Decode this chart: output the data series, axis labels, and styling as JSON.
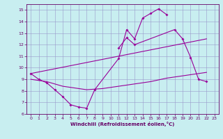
{
  "xlabel": "Windchill (Refroidissement éolien,°C)",
  "background_color": "#c8eef0",
  "grid_color": "#9999cc",
  "line_color": "#990099",
  "xlim": [
    -0.5,
    23.5
  ],
  "ylim": [
    6,
    15.5
  ],
  "xticks": [
    0,
    1,
    2,
    3,
    4,
    5,
    6,
    7,
    8,
    9,
    10,
    11,
    12,
    13,
    14,
    15,
    16,
    17,
    18,
    19,
    20,
    21,
    22,
    23
  ],
  "yticks": [
    6,
    7,
    8,
    9,
    10,
    11,
    12,
    13,
    14,
    15
  ],
  "series1_x": [
    0,
    1,
    2,
    3,
    4,
    5,
    6,
    7,
    8,
    11,
    12,
    13,
    14,
    15,
    16,
    17
  ],
  "series1_y": [
    9.5,
    9.0,
    8.7,
    8.1,
    7.5,
    6.8,
    6.6,
    6.5,
    8.1,
    10.8,
    13.3,
    12.5,
    14.3,
    14.7,
    15.1,
    14.6
  ],
  "series2_x": [
    11,
    12,
    13,
    18,
    19,
    20,
    21,
    22
  ],
  "series2_y": [
    11.7,
    12.6,
    12.0,
    13.3,
    12.5,
    10.9,
    9.0,
    8.8
  ],
  "series3_x": [
    0,
    1,
    2,
    3,
    4,
    5,
    6,
    7,
    8,
    9,
    10,
    11,
    12,
    13,
    14,
    15,
    16,
    17,
    18,
    19,
    20,
    21,
    22
  ],
  "series3_y": [
    9.0,
    8.9,
    8.8,
    8.6,
    8.4,
    8.3,
    8.2,
    8.1,
    8.15,
    8.2,
    8.3,
    8.4,
    8.5,
    8.6,
    8.7,
    8.8,
    8.95,
    9.1,
    9.2,
    9.3,
    9.4,
    9.5,
    9.6
  ],
  "series4_x": [
    0,
    22
  ],
  "series4_y": [
    9.5,
    12.5
  ]
}
